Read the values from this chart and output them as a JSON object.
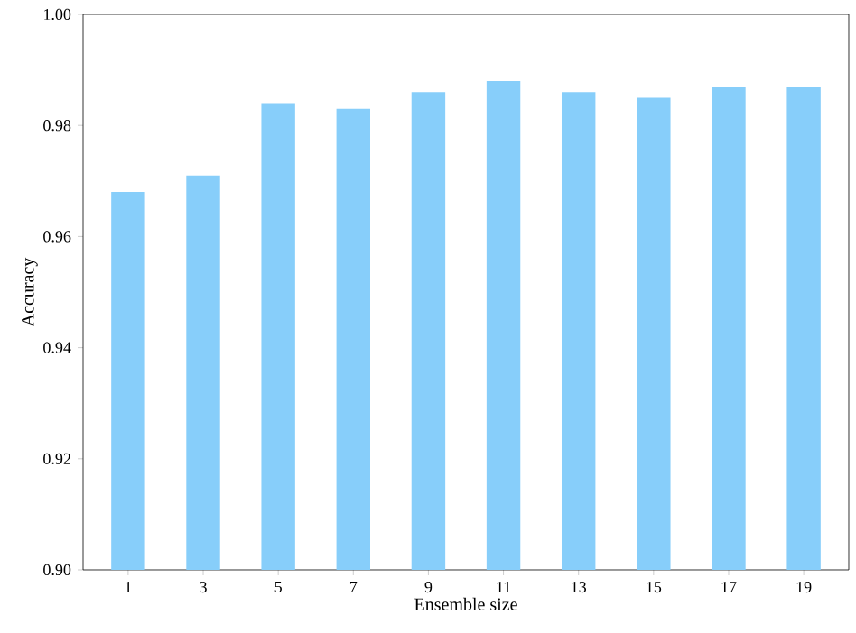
{
  "chart_data": {
    "type": "bar",
    "xlabel": "Ensemble size",
    "ylabel": "Accuracy",
    "categories": [
      "1",
      "3",
      "5",
      "7",
      "9",
      "11",
      "13",
      "15",
      "17",
      "19"
    ],
    "values": [
      0.968,
      0.971,
      0.984,
      0.983,
      0.986,
      0.988,
      0.986,
      0.985,
      0.987,
      0.987
    ],
    "color": "#87cefa",
    "ylim": [
      0.9,
      1.0
    ],
    "yticks": [
      {
        "value": 0.9,
        "label": "0.90"
      },
      0.92,
      0.94,
      0.96,
      0.98,
      {
        "value": 1.0,
        "label": "1.00"
      }
    ]
  }
}
